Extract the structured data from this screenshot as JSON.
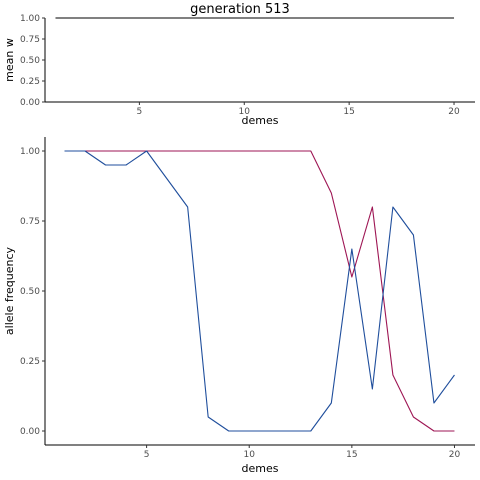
{
  "title": "generation 513",
  "chart_data": [
    {
      "type": "line",
      "xlabel": "demes",
      "ylabel": "mean w",
      "xlim": [
        0.5,
        21
      ],
      "ylim": [
        0,
        1
      ],
      "x_ticks": [
        5,
        10,
        15,
        20
      ],
      "y_ticks": [
        0,
        0.25,
        0.5,
        0.75,
        1
      ],
      "y_tick_labels": [
        "0.00",
        "0.25",
        "0.50",
        "0.75",
        "1.00"
      ],
      "x_tick_labels": [
        "5",
        "10",
        "15",
        "20"
      ],
      "grid": false,
      "series": [
        {
          "color": "#000000",
          "x": [
            1,
            20
          ],
          "values": [
            1,
            1
          ]
        }
      ]
    },
    {
      "type": "line",
      "xlabel": "demes",
      "ylabel": "allele frequency",
      "xlim": [
        0.05,
        21
      ],
      "ylim": [
        -0.05,
        1.05
      ],
      "x_ticks": [
        5,
        10,
        15,
        20
      ],
      "y_ticks": [
        0,
        0.25,
        0.5,
        0.75,
        1
      ],
      "y_tick_labels": [
        "0.00",
        "0.25",
        "0.50",
        "0.75",
        "1.00"
      ],
      "x_tick_labels": [
        "5",
        "10",
        "15",
        "20"
      ],
      "grid": false,
      "series": [
        {
          "color": "#9e1654",
          "x": [
            1,
            2,
            3,
            4,
            5,
            6,
            7,
            8,
            9,
            10,
            11,
            12,
            13,
            14,
            15,
            16,
            17,
            18,
            19,
            20
          ],
          "values": [
            1,
            1,
            1,
            1,
            1,
            1,
            1,
            1,
            1,
            1,
            1,
            1,
            1,
            0.85,
            0.55,
            0.8,
            0.2,
            0.05,
            0,
            0
          ]
        },
        {
          "color": "#1f4e9c",
          "x": [
            1,
            2,
            3,
            4,
            5,
            6,
            7,
            8,
            9,
            10,
            11,
            12,
            13,
            14,
            15,
            16,
            17,
            18,
            19,
            20
          ],
          "values": [
            1,
            1,
            0.95,
            0.95,
            1,
            0.9,
            0.8,
            0.05,
            0,
            0,
            0,
            0,
            0,
            0.1,
            0.65,
            0.15,
            0.8,
            0.7,
            0.1,
            0.2
          ]
        }
      ]
    }
  ]
}
